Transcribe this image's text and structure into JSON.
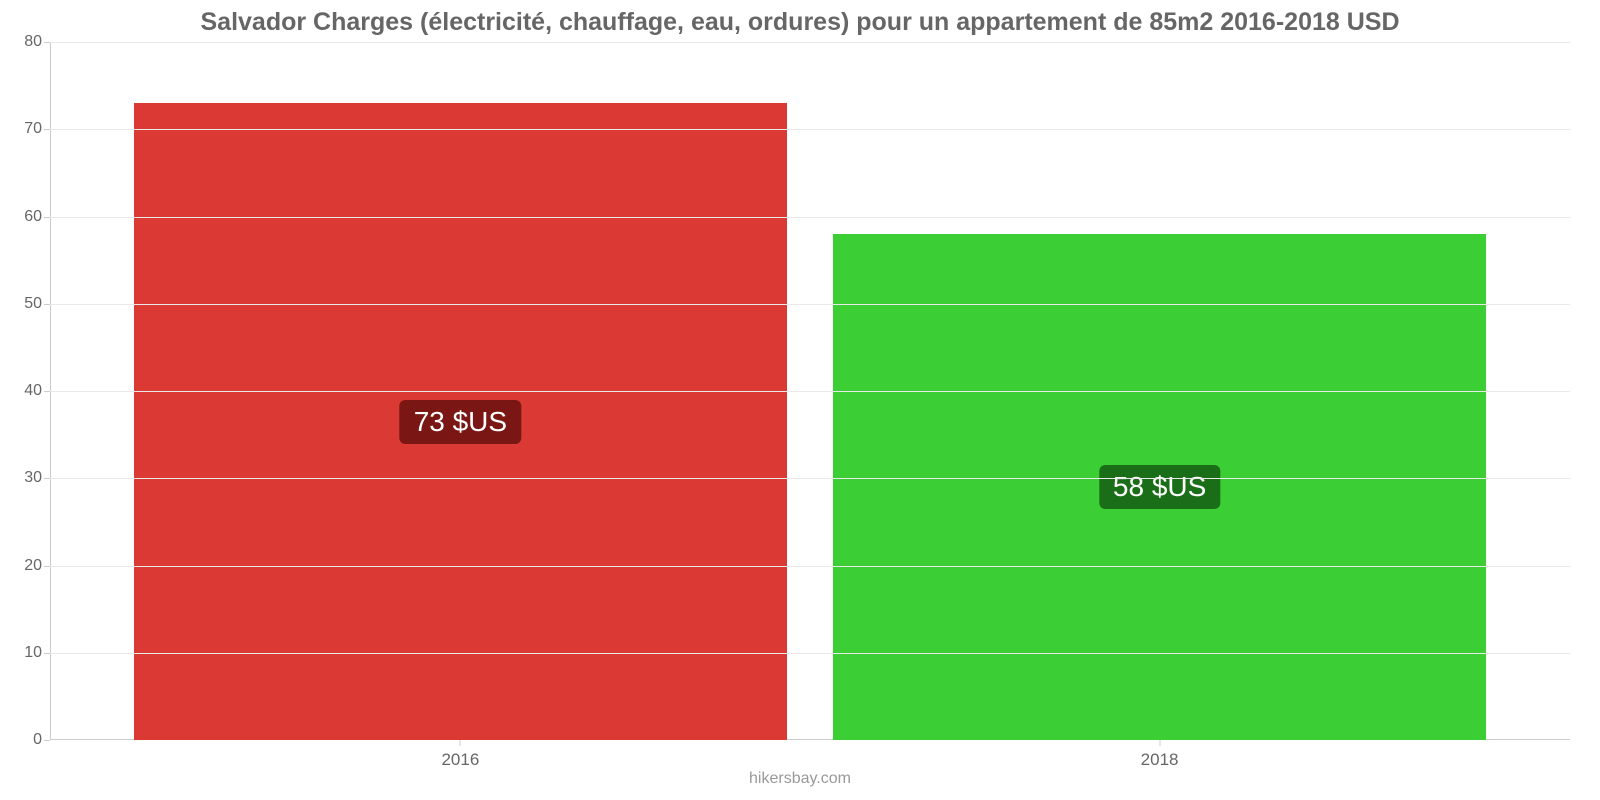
{
  "chart": {
    "type": "bar",
    "title": "Salvador Charges (électricité, chauffage, eau, ordures) pour un appartement de 85m2 2016-2018 USD",
    "title_fontsize": 25,
    "title_color": "#666666",
    "categories": [
      "2016",
      "2018"
    ],
    "values": [
      73,
      58
    ],
    "value_labels": [
      "73 $US",
      "58 $US"
    ],
    "bar_colors": [
      "#db3a34",
      "#3bce35"
    ],
    "badge_colors": [
      "#7a1714",
      "#1b6e18"
    ],
    "badge_text_color": "#ffffff",
    "ylim": [
      0,
      80
    ],
    "ytick_step": 10,
    "yticks": [
      0,
      10,
      20,
      30,
      40,
      50,
      60,
      70,
      80
    ],
    "grid_color": "#e9e9e9",
    "axis_color": "#cccccc",
    "background_color": "#ffffff",
    "label_fontsize": 16,
    "bar_width_pct": 43,
    "bar_positions_pct": [
      5.5,
      51.5
    ],
    "source": "hikersbay.com"
  }
}
